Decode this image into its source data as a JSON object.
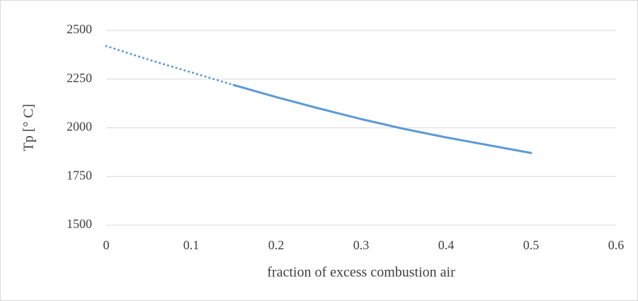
{
  "chart_data": {
    "type": "line",
    "x_label": "fraction of excess combustion air",
    "y_label": "Tp [° C]",
    "xlim": [
      0,
      0.6
    ],
    "xticks": [
      0,
      0.1,
      0.2,
      0.3,
      0.4,
      0.5,
      0.6
    ],
    "ylim": [
      1500,
      2500
    ],
    "yticks": [
      1500,
      1750,
      2000,
      2250,
      2500
    ],
    "grid": true,
    "series": [
      {
        "color": "#5b9bd5",
        "style": "dotted",
        "x": [
          0,
          0.05,
          0.1,
          0.15
        ],
        "values": [
          2420,
          2350,
          2285,
          2220
        ]
      },
      {
        "color": "#5b9bd5",
        "style": "solid",
        "x": [
          0.15,
          0.2,
          0.25,
          0.3,
          0.35,
          0.4,
          0.45,
          0.5
        ],
        "values": [
          2220,
          2158,
          2100,
          2045,
          1995,
          1951,
          1911,
          1871
        ]
      }
    ]
  }
}
